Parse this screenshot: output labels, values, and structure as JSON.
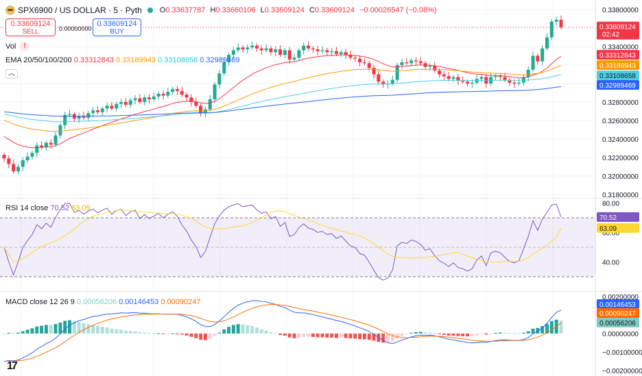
{
  "header": {
    "symbol_title": "SPX6900 / US DOLLAR · 5 · Pyth",
    "ohlc": {
      "o_label": "O",
      "o": "0.33637787",
      "h_label": "H",
      "h": "0.33660106",
      "l_label": "L",
      "l": "0.33609124",
      "c_label": "C",
      "c": "0.33609124",
      "change": "−0.00026547 (−0.08%)"
    }
  },
  "trade": {
    "sell_price": "0.33609124",
    "sell_label": "SELL",
    "spread": "0.00000000",
    "buy_price": "0.33609124",
    "buy_label": "BUY"
  },
  "indicators": {
    "vol_label": "Vol",
    "warn_icon": "!",
    "ema_label": "EMA 20/50/100/200",
    "ema_values": [
      "0.33312843",
      "0.33189943",
      "0.33108658",
      "0.32989469"
    ],
    "collapse_icon": "︿",
    "rsi_label": "RSI 14 close",
    "rsi_values": [
      "70.52",
      "63.09"
    ],
    "macd_label": "MACD close 12 26 9",
    "macd_values": [
      "0.00056206",
      "0.00146453",
      "0.00090247"
    ]
  },
  "colors": {
    "up": "#22ab94",
    "down": "#f23645",
    "ema20": "#f23645",
    "ema50": "#ff9800",
    "ema100": "#4dd0e1",
    "ema200": "#2962ff",
    "rsi_line": "#7e57c2",
    "rsi_ma": "#fdd835",
    "rsi_band": "#7e57c2",
    "macd_line": "#2962ff",
    "signal_line": "#ff6d00"
  },
  "price_axis": {
    "ticks": [
      "0.33800000",
      "0.33600000",
      "0.33400000",
      "0.33200000",
      "0.33000000",
      "0.32800000",
      "0.32600000",
      "0.32400000",
      "0.32200000",
      "0.32000000",
      "0.31800000"
    ],
    "tick_values": [
      0.338,
      0.336,
      0.334,
      0.332,
      0.33,
      0.328,
      0.326,
      0.324,
      0.322,
      0.32,
      0.318
    ],
    "last_price": "0.33609124",
    "countdown": "02:42",
    "labels": [
      "0.33312843",
      "0.33189943",
      "0.33108658",
      "0.32989469"
    ]
  },
  "rsi_axis": {
    "ticks": [
      "80.00",
      "60.00",
      "40.00"
    ],
    "labels": [
      "70.52",
      "63.09"
    ]
  },
  "macd_axis": {
    "ticks": [
      "0.00200000",
      "0.00000000",
      "−0.00100000",
      "−0.00200000"
    ],
    "labels": [
      "0.00146453",
      "0.00090247",
      "0.00056206"
    ]
  },
  "icons": {
    "logo": "tradingview-logo-icon",
    "live": "live-dot-icon"
  },
  "logo_text": "17",
  "chart_data": {
    "type": "candlestick",
    "close": [
      0.3219,
      0.3213,
      0.3205,
      0.321,
      0.3217,
      0.3221,
      0.3225,
      0.3233,
      0.3231,
      0.3236,
      0.3234,
      0.3244,
      0.3255,
      0.3266,
      0.3267,
      0.3262,
      0.3265,
      0.3263,
      0.3268,
      0.3271,
      0.3269,
      0.3273,
      0.3276,
      0.3273,
      0.3278,
      0.328,
      0.3277,
      0.3282,
      0.3284,
      0.328,
      0.3285,
      0.3283,
      0.3286,
      0.3289,
      0.3287,
      0.3291,
      0.3294,
      0.3292,
      0.3288,
      0.3285,
      0.328,
      0.3276,
      0.3268,
      0.3272,
      0.3283,
      0.3299,
      0.3311,
      0.3323,
      0.3331,
      0.3336,
      0.3339,
      0.3337,
      0.3339,
      0.3341,
      0.3338,
      0.3336,
      0.3338,
      0.3334,
      0.3337,
      0.3331,
      0.3336,
      0.3326,
      0.3328,
      0.3336,
      0.3341,
      0.3338,
      0.3337,
      0.3335,
      0.3336,
      0.3334,
      0.3335,
      0.3332,
      0.3334,
      0.3331,
      0.3328,
      0.3327,
      0.3323,
      0.3322,
      0.3317,
      0.331,
      0.3302,
      0.3299,
      0.33,
      0.3304,
      0.332,
      0.3323,
      0.3322,
      0.3325,
      0.3324,
      0.3322,
      0.3318,
      0.3319,
      0.3314,
      0.331,
      0.3308,
      0.3305,
      0.3307,
      0.3303,
      0.3302,
      0.33,
      0.3301,
      0.3305,
      0.3307,
      0.33,
      0.3307,
      0.3308,
      0.3307,
      0.3304,
      0.3301,
      0.33,
      0.3301,
      0.3307,
      0.3315,
      0.333,
      0.3324,
      0.3338,
      0.335,
      0.3367,
      0.3369,
      0.3361
    ],
    "ema20_last": 0.33312843,
    "ema50_last": 0.33189943,
    "ema100_last": 0.33108658,
    "ema200_last": 0.32989469,
    "rsi_last": 70.52,
    "rsi_ma_last": 63.09,
    "macd_last": 0.00146453,
    "signal_last": 0.00090247,
    "hist_last": 0.00056206,
    "ylim": [
      0.318,
      0.338
    ]
  }
}
